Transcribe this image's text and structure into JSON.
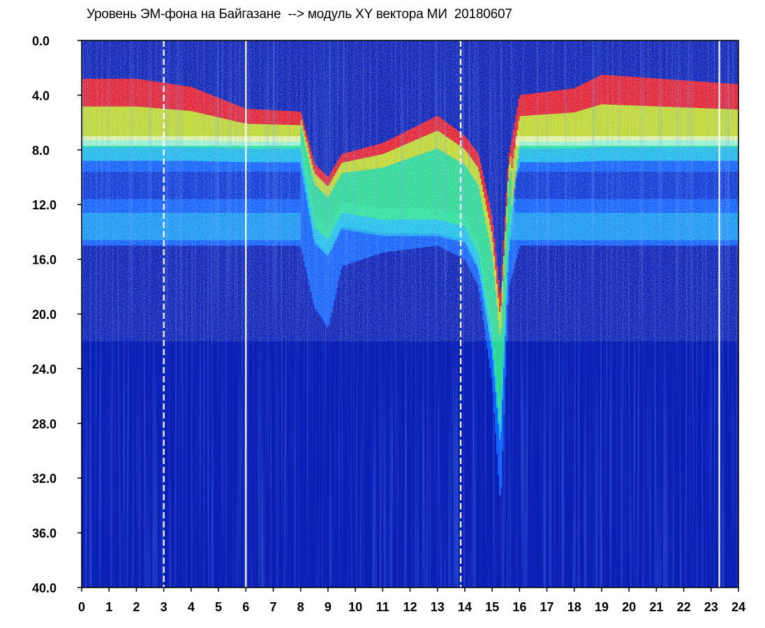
{
  "chart_data": {
    "type": "heatmap",
    "title": "Уровень ЭМ-фона на Байгазане  --> модуль XY вектора МИ  20180607",
    "xlabel": "",
    "ylabel": "",
    "xlim": [
      0,
      24
    ],
    "ylim": [
      0.0,
      40.0
    ],
    "y_inverted": true,
    "x_ticks": [
      "0",
      "1",
      "2",
      "3",
      "4",
      "5",
      "6",
      "7",
      "8",
      "9",
      "10",
      "11",
      "12",
      "13",
      "14",
      "15",
      "16",
      "17",
      "18",
      "19",
      "20",
      "21",
      "22",
      "23",
      "24"
    ],
    "y_ticks": [
      "0.0",
      "4.0",
      "8.0",
      "12.0",
      "16.0",
      "20.0",
      "24.0",
      "28.0",
      "32.0",
      "36.0",
      "40.0"
    ],
    "colorscale": [
      "#0a1fb4",
      "#1060ff",
      "#20c8e8",
      "#30e890",
      "#d8f020",
      "#ff2020"
    ],
    "band_profile": [
      {
        "x": 0.0,
        "noise_top": 2.8,
        "green_bottom": 8.2,
        "cyan_bottom": 15.0
      },
      {
        "x": 2.0,
        "noise_top": 2.8,
        "green_bottom": 8.2,
        "cyan_bottom": 15.0
      },
      {
        "x": 4.0,
        "noise_top": 3.4,
        "green_bottom": 8.2,
        "cyan_bottom": 15.0
      },
      {
        "x": 6.0,
        "noise_top": 5.0,
        "green_bottom": 8.3,
        "cyan_bottom": 15.0
      },
      {
        "x": 8.0,
        "noise_top": 5.2,
        "green_bottom": 8.3,
        "cyan_bottom": 15.0
      },
      {
        "x": 8.5,
        "noise_top": 9.0,
        "green_bottom": 14.0,
        "cyan_bottom": 19.5
      },
      {
        "x": 9.0,
        "noise_top": 10.0,
        "green_bottom": 15.0,
        "cyan_bottom": 21.0
      },
      {
        "x": 9.5,
        "noise_top": 8.3,
        "green_bottom": 13.0,
        "cyan_bottom": 16.5
      },
      {
        "x": 11.0,
        "noise_top": 7.5,
        "green_bottom": 13.5,
        "cyan_bottom": 15.5
      },
      {
        "x": 13.0,
        "noise_top": 5.5,
        "green_bottom": 13.5,
        "cyan_bottom": 15.0
      },
      {
        "x": 14.0,
        "noise_top": 7.0,
        "green_bottom": 14.0,
        "cyan_bottom": 16.0
      },
      {
        "x": 14.5,
        "noise_top": 8.3,
        "green_bottom": 16.0,
        "cyan_bottom": 18.0
      },
      {
        "x": 15.0,
        "noise_top": 13.0,
        "green_bottom": 22.0,
        "cyan_bottom": 25.0
      },
      {
        "x": 15.3,
        "noise_top": 19.0,
        "green_bottom": 29.0,
        "cyan_bottom": 34.0
      },
      {
        "x": 15.6,
        "noise_top": 8.5,
        "green_bottom": 15.0,
        "cyan_bottom": 18.0
      },
      {
        "x": 16.0,
        "noise_top": 4.0,
        "green_bottom": 8.3,
        "cyan_bottom": 15.0
      },
      {
        "x": 18.0,
        "noise_top": 3.5,
        "green_bottom": 8.3,
        "cyan_bottom": 15.0
      },
      {
        "x": 19.0,
        "noise_top": 2.5,
        "green_bottom": 8.2,
        "cyan_bottom": 15.0
      },
      {
        "x": 24.0,
        "noise_top": 3.2,
        "green_bottom": 8.2,
        "cyan_bottom": 15.0
      }
    ],
    "gap_columns_hours": [
      3.0,
      6.0,
      13.85,
      23.3
    ]
  }
}
